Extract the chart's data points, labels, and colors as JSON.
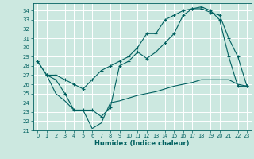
{
  "xlabel": "Humidex (Indice chaleur)",
  "bg_color": "#cce8e0",
  "grid_color": "#aad4cc",
  "line_color": "#006060",
  "xlim": [
    -0.5,
    23.5
  ],
  "ylim": [
    21,
    34.8
  ],
  "yticks": [
    21,
    22,
    23,
    24,
    25,
    26,
    27,
    28,
    29,
    30,
    31,
    32,
    33,
    34
  ],
  "xticks": [
    0,
    1,
    2,
    3,
    4,
    5,
    6,
    7,
    8,
    9,
    10,
    11,
    12,
    13,
    14,
    15,
    16,
    17,
    18,
    19,
    20,
    21,
    22,
    23
  ],
  "line1_x": [
    0,
    1,
    2,
    3,
    4,
    5,
    6,
    7,
    8,
    9,
    10,
    11,
    12,
    13,
    14,
    15,
    16,
    17,
    18,
    19,
    20,
    21,
    22,
    23
  ],
  "line1_y": [
    28.5,
    27.0,
    27.0,
    26.5,
    26.0,
    25.5,
    26.5,
    27.5,
    28.0,
    28.5,
    29.0,
    30.0,
    31.5,
    31.5,
    33.0,
    33.5,
    34.0,
    34.2,
    34.2,
    33.8,
    33.5,
    31.0,
    29.0,
    25.8
  ],
  "line2_x": [
    0,
    1,
    2,
    3,
    4,
    5,
    6,
    7,
    8,
    9,
    10,
    11,
    12,
    13,
    14,
    15,
    16,
    17,
    18,
    19,
    20,
    21,
    22,
    23
  ],
  "line2_y": [
    28.5,
    27.0,
    26.5,
    25.0,
    23.2,
    23.2,
    23.2,
    22.5,
    23.5,
    28.0,
    28.5,
    29.5,
    28.8,
    29.5,
    30.5,
    31.5,
    33.5,
    34.2,
    34.4,
    34.0,
    33.0,
    29.0,
    25.8,
    25.8
  ],
  "line3_x": [
    1,
    2,
    3,
    4,
    5,
    6,
    7,
    8,
    9,
    10,
    11,
    12,
    13,
    14,
    15,
    16,
    17,
    18,
    19,
    20,
    21,
    22,
    23
  ],
  "line3_y": [
    27.0,
    25.0,
    24.2,
    23.2,
    23.2,
    21.2,
    21.8,
    24.0,
    24.2,
    24.5,
    24.8,
    25.0,
    25.2,
    25.5,
    25.8,
    26.0,
    26.2,
    26.5,
    26.5,
    26.5,
    26.5,
    26.0,
    25.8
  ]
}
